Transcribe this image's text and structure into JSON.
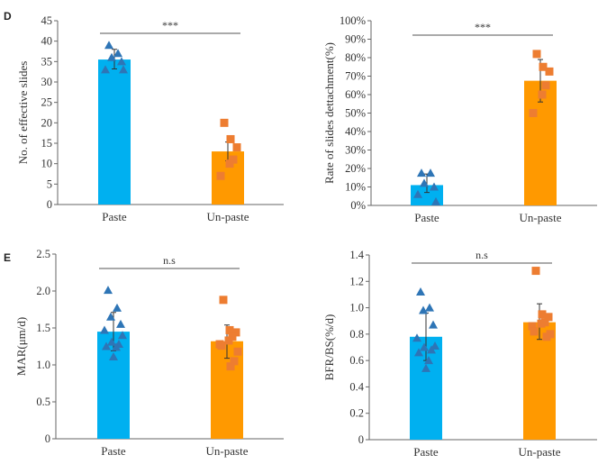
{
  "colors": {
    "paste_bar": "#00b0f0",
    "unpaste_bar": "#ff9900",
    "paste_marker": "#2e75b6",
    "unpaste_marker": "#ed7d31",
    "axis": "#666666"
  },
  "chart_data": [
    {
      "panel": "D",
      "type": "bar",
      "ylabel": "No. of effective slides",
      "ylim": [
        0,
        45
      ],
      "yticks": [
        "0",
        "5",
        "10",
        "15",
        "20",
        "25",
        "30",
        "35",
        "40",
        "45"
      ],
      "yticks_values": [
        0,
        5,
        10,
        15,
        20,
        25,
        30,
        35,
        40,
        45
      ],
      "categories": [
        "Paste",
        "Un-paste"
      ],
      "values": [
        35.5,
        13
      ],
      "error": [
        [
          33.2,
          38
        ],
        [
          10.7,
          15.3
        ]
      ],
      "points": [
        [
          39,
          37,
          36,
          35,
          33,
          33
        ],
        [
          20,
          16,
          14,
          11,
          10,
          7
        ]
      ],
      "markers": [
        "triangle",
        "square"
      ],
      "significance": "***",
      "grid": false
    },
    {
      "panel": "",
      "type": "bar",
      "ylabel": "Rate of slides dettachment(%)",
      "ylim": [
        0,
        100
      ],
      "yticks": [
        "0%",
        "10%",
        "20%",
        "30%",
        "40%",
        "50%",
        "60%",
        "70%",
        "80%",
        "90%",
        "100%"
      ],
      "yticks_values": [
        0,
        10,
        20,
        30,
        40,
        50,
        60,
        70,
        80,
        90,
        100
      ],
      "categories": [
        "Paste",
        "Un-paste"
      ],
      "values": [
        11,
        67.5
      ],
      "error": [
        [
          7,
          17
        ],
        [
          56,
          79
        ]
      ],
      "points": [
        [
          17.5,
          17.5,
          12,
          10,
          6,
          2
        ],
        [
          82,
          75,
          72.5,
          65,
          60,
          50
        ]
      ],
      "markers": [
        "triangle",
        "square"
      ],
      "significance": "***",
      "grid": false
    },
    {
      "panel": "E",
      "type": "bar",
      "ylabel": "MAR(μm/d)",
      "ylim": [
        0,
        2.5
      ],
      "yticks": [
        "0",
        "0.5",
        "1.0",
        "1.5",
        "2.0",
        "2.5"
      ],
      "yticks_values": [
        0,
        0.5,
        1.0,
        1.5,
        2.0,
        2.5
      ],
      "categories": [
        "Paste",
        "Un-paste"
      ],
      "values": [
        1.45,
        1.32
      ],
      "error": [
        [
          1.19,
          1.71
        ],
        [
          1.09,
          1.54
        ]
      ],
      "points": [
        [
          2.01,
          1.77,
          1.65,
          1.55,
          1.47,
          1.4,
          1.31,
          1.28,
          1.25,
          1.24,
          1.11
        ],
        [
          1.88,
          1.47,
          1.44,
          1.38,
          1.33,
          1.28,
          1.26,
          1.18,
          1.05,
          0.98
        ]
      ],
      "markers": [
        "triangle",
        "square"
      ],
      "significance": "n.s",
      "grid": false
    },
    {
      "panel": "",
      "type": "bar",
      "ylabel": "BFR/BS(%/d)",
      "ylim": [
        0,
        1.4
      ],
      "yticks": [
        "0",
        "0.2",
        "0.4",
        "0.6",
        "0.8",
        "1.0",
        "1.2",
        "1.4"
      ],
      "yticks_values": [
        0,
        0.2,
        0.4,
        0.6,
        0.8,
        1.0,
        1.2,
        1.4
      ],
      "categories": [
        "Paste",
        "Un-paste"
      ],
      "values": [
        0.78,
        0.89
      ],
      "error": [
        [
          0.6,
          0.96
        ],
        [
          0.76,
          1.03
        ]
      ],
      "points": [
        [
          1.12,
          1.0,
          0.98,
          0.87,
          0.77,
          0.71,
          0.7,
          0.68,
          0.66,
          0.6,
          0.54
        ],
        [
          1.28,
          0.95,
          0.93,
          0.89,
          0.88,
          0.86,
          0.82,
          0.8,
          0.78
        ]
      ],
      "markers": [
        "triangle",
        "square"
      ],
      "significance": "n.s",
      "grid": false
    }
  ]
}
